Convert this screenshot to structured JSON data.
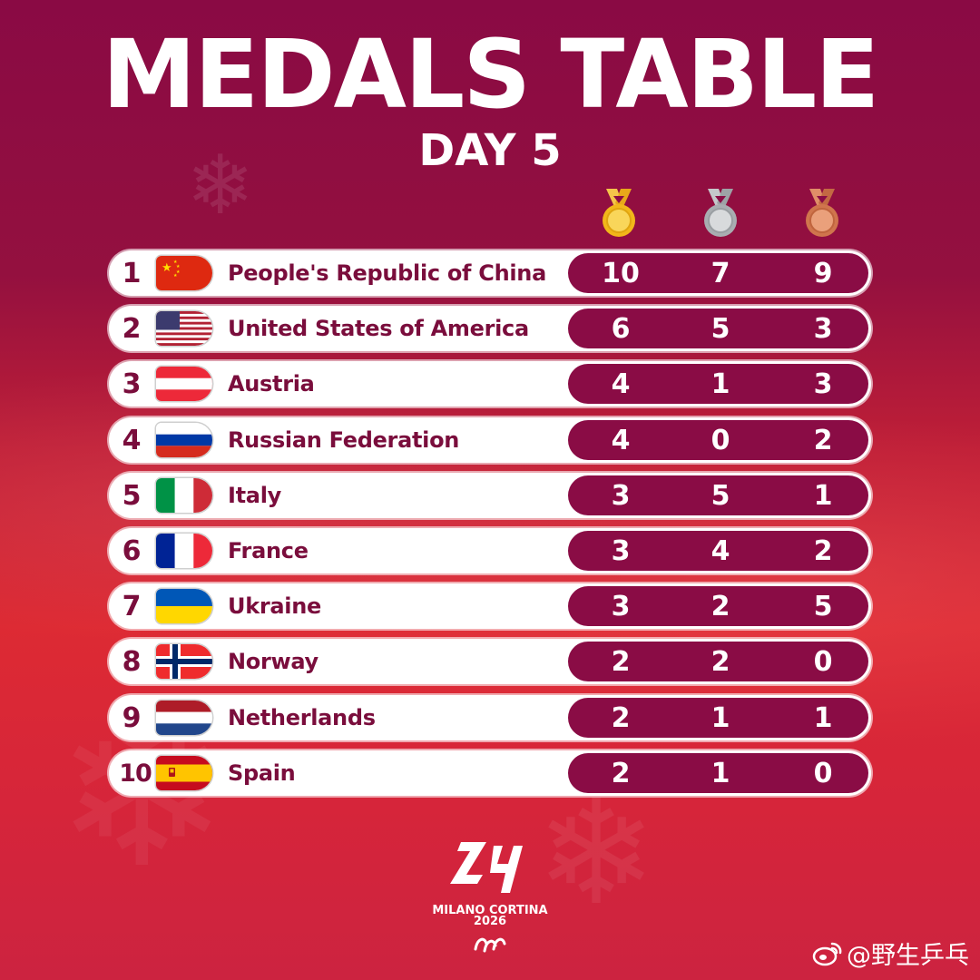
{
  "header": {
    "title": "MEDALS TABLE",
    "subtitle": "DAY 5"
  },
  "medal_columns": [
    {
      "key": "gold",
      "icon": "gold-medal-icon",
      "color": "#f2b71a"
    },
    {
      "key": "silver",
      "icon": "silver-medal-icon",
      "color": "#a9adb1"
    },
    {
      "key": "bronze",
      "icon": "bronze-medal-icon",
      "color": "#d0754d"
    }
  ],
  "standings": [
    {
      "rank": "1",
      "country": "People's Republic of China",
      "flag": "china-flag-icon",
      "gold": "10",
      "silver": "7",
      "bronze": "9"
    },
    {
      "rank": "2",
      "country": "United States of America",
      "flag": "usa-flag-icon",
      "gold": "6",
      "silver": "5",
      "bronze": "3"
    },
    {
      "rank": "3",
      "country": "Austria",
      "flag": "austria-flag-icon",
      "gold": "4",
      "silver": "1",
      "bronze": "3"
    },
    {
      "rank": "4",
      "country": "Russian Federation",
      "flag": "russia-flag-icon",
      "gold": "4",
      "silver": "0",
      "bronze": "2"
    },
    {
      "rank": "5",
      "country": "Italy",
      "flag": "italy-flag-icon",
      "gold": "3",
      "silver": "5",
      "bronze": "1"
    },
    {
      "rank": "6",
      "country": "France",
      "flag": "france-flag-icon",
      "gold": "3",
      "silver": "4",
      "bronze": "2"
    },
    {
      "rank": "7",
      "country": "Ukraine",
      "flag": "ukraine-flag-icon",
      "gold": "3",
      "silver": "2",
      "bronze": "5"
    },
    {
      "rank": "8",
      "country": "Norway",
      "flag": "norway-flag-icon",
      "gold": "2",
      "silver": "2",
      "bronze": "0"
    },
    {
      "rank": "9",
      "country": "Netherlands",
      "flag": "netherlands-flag-icon",
      "gold": "2",
      "silver": "1",
      "bronze": "1"
    },
    {
      "rank": "10",
      "country": "Spain",
      "flag": "spain-flag-icon",
      "gold": "2",
      "silver": "1",
      "bronze": "0"
    }
  ],
  "footer": {
    "logo_text_line1": "MILANO CORTINA",
    "logo_text_line2": "2026",
    "watermark": "@野生乒乓"
  },
  "colors": {
    "maroon": "#8a0c45",
    "text_maroon": "#7a0d3c",
    "row_bg": "#ffffff"
  }
}
